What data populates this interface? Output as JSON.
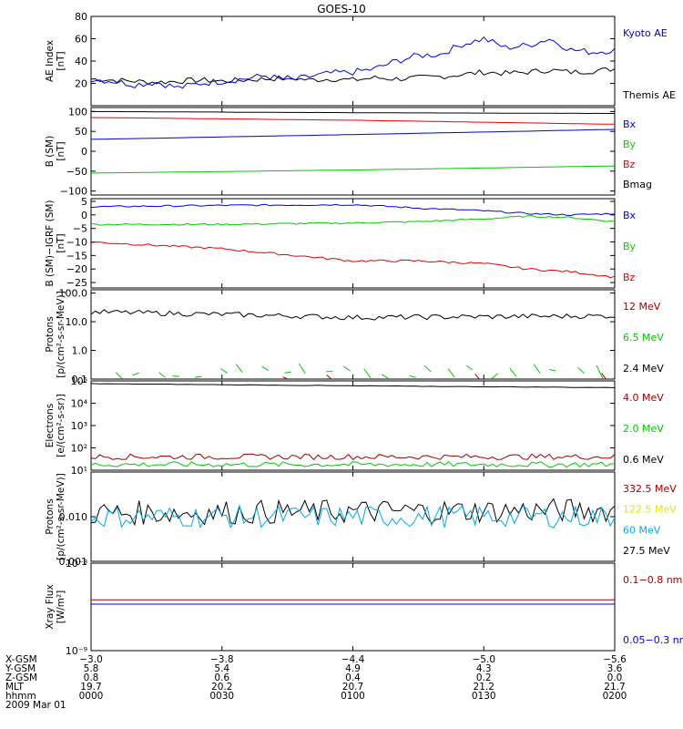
{
  "title": "GOES-10",
  "colors": {
    "black": "#000000",
    "blue": "#0000e6",
    "green": "#00c800",
    "red": "#e60000",
    "darkred": "#a00000",
    "yellow": "#e6e600",
    "cyan": "#00a8e6"
  },
  "panels": [
    {
      "key": "ae",
      "ylabel": [
        "AE Index",
        "[nT]"
      ],
      "scale": "linear",
      "ylim": [
        0,
        80
      ],
      "ticks": [
        {
          "v": 20,
          "t": "20"
        },
        {
          "v": 40,
          "t": "40"
        },
        {
          "v": 60,
          "t": "60"
        },
        {
          "v": 80,
          "t": "80"
        }
      ],
      "legend": [
        {
          "t": "Kyoto AE",
          "c": "blue"
        },
        {
          "t": "Themis AE",
          "c": "black"
        }
      ]
    },
    {
      "key": "bsm",
      "ylabel": [
        "B (SM)",
        "[nT]"
      ],
      "scale": "linear",
      "ylim": [
        -110,
        110
      ],
      "ticks": [
        {
          "v": -100,
          "t": "−100"
        },
        {
          "v": -50,
          "t": "−50"
        },
        {
          "v": 0,
          "t": "0"
        },
        {
          "v": 50,
          "t": "50"
        },
        {
          "v": 100,
          "t": "100"
        }
      ],
      "legend": [
        {
          "t": "Bx",
          "c": "blue"
        },
        {
          "t": "By",
          "c": "green"
        },
        {
          "t": "Bz",
          "c": "red"
        },
        {
          "t": "Bmag",
          "c": "black"
        }
      ]
    },
    {
      "key": "bigrf",
      "ylabel": [
        "B (SM)−IGRF (SM)",
        "[nT]"
      ],
      "scale": "linear",
      "ylim": [
        -27,
        6
      ],
      "ticks": [
        {
          "v": 5,
          "t": "5"
        },
        {
          "v": 0,
          "t": "0"
        },
        {
          "v": -5,
          "t": "−5"
        },
        {
          "v": -10,
          "t": "−10"
        },
        {
          "v": -15,
          "t": "−15"
        },
        {
          "v": -20,
          "t": "−20"
        },
        {
          "v": -25,
          "t": "−25"
        }
      ],
      "legend": [
        {
          "t": "Bx",
          "c": "blue"
        },
        {
          "t": "By",
          "c": "green"
        },
        {
          "t": "Bz",
          "c": "red"
        }
      ]
    },
    {
      "key": "protons1",
      "ylabel": [
        "Protons",
        "[p/(cm²-s-sr-MeV)]"
      ],
      "scale": "log",
      "ylim": [
        0.1,
        130
      ],
      "ticks": [
        {
          "v": 100,
          "t": "100.0"
        },
        {
          "v": 10,
          "t": "10.0"
        },
        {
          "v": 1,
          "t": "1.0"
        },
        {
          "v": 0.1,
          "t": "0.1"
        }
      ],
      "legend": [
        {
          "t": "12 MeV",
          "c": "darkred"
        },
        {
          "t": "6.5 MeV",
          "c": "green"
        },
        {
          "t": "2.4 MeV",
          "c": "black"
        }
      ]
    },
    {
      "key": "electrons",
      "ylabel": [
        "Electrons",
        "[e/(cm²-s-sr)]"
      ],
      "scale": "log",
      "ylim": [
        10,
        100000
      ],
      "ticks": [
        {
          "v": 100000,
          "t": "10⁵"
        },
        {
          "v": 10000,
          "t": "10⁴"
        },
        {
          "v": 1000,
          "t": "10³"
        },
        {
          "v": 100,
          "t": "10²"
        },
        {
          "v": 10,
          "t": "10¹"
        }
      ],
      "legend": [
        {
          "t": "4.0 MeV",
          "c": "darkred"
        },
        {
          "t": "2.0 MeV",
          "c": "green"
        },
        {
          "t": "0.6 MeV",
          "c": "black"
        }
      ]
    },
    {
      "key": "protons2",
      "ylabel": [
        "Protons",
        "[p/(cm²-s-sr-MeV)]"
      ],
      "scale": "log",
      "ylim": [
        0.001,
        0.1
      ],
      "ticks": [
        {
          "v": 0.01,
          "t": "0.010"
        },
        {
          "v": 0.001,
          "t": "0.001"
        }
      ],
      "legend": [
        {
          "t": "332.5 MeV",
          "c": "darkred"
        },
        {
          "t": "122.5 MeV",
          "c": "yellow"
        },
        {
          "t": "60 MeV",
          "c": "cyan"
        },
        {
          "t": "27.5 MeV",
          "c": "black"
        }
      ]
    },
    {
      "key": "xray",
      "ylabel": [
        "Xray Flux",
        "[W/m²]"
      ],
      "scale": "log",
      "ylim": [
        1e-09,
        1e-08
      ],
      "ticks": [
        {
          "v": 1e-08,
          "t": "10⁻⁸"
        },
        {
          "v": 1e-09,
          "t": "10⁻⁹"
        }
      ],
      "legend": [
        {
          "t": "0.1−0.8 nm",
          "c": "darkred"
        },
        {
          "t": "0.05−0.3 nm",
          "c": "blue"
        }
      ]
    }
  ],
  "xaxis": {
    "rows": [
      {
        "label": "X-GSM",
        "values": [
          "−3.0",
          "−3.8",
          "−4.4",
          "−5.0",
          "−5.6"
        ]
      },
      {
        "label": "Y-GSM",
        "values": [
          "5.8",
          "5.4",
          "4.9",
          "4.3",
          "3.6"
        ]
      },
      {
        "label": "Z-GSM",
        "values": [
          "0.8",
          "0.6",
          "0.4",
          "0.2",
          "0.0"
        ]
      },
      {
        "label": "MLT",
        "values": [
          "19.7",
          "20.2",
          "20.7",
          "21.2",
          "21.7"
        ]
      },
      {
        "label": "hhmm",
        "values": [
          "0000",
          "0030",
          "0100",
          "0130",
          "0200"
        ]
      }
    ],
    "date": "2009 Mar 01"
  },
  "chart_data": {
    "type": "line",
    "x_minutes_of_day": [
      0,
      120
    ],
    "series_samples": {
      "kyoto_ae": [
        [
          0,
          24
        ],
        [
          5,
          22
        ],
        [
          10,
          19
        ],
        [
          15,
          21
        ],
        [
          20,
          16
        ],
        [
          25,
          20
        ],
        [
          30,
          22
        ],
        [
          35,
          24
        ],
        [
          40,
          27
        ],
        [
          45,
          22
        ],
        [
          50,
          26
        ],
        [
          55,
          29
        ],
        [
          60,
          30
        ],
        [
          65,
          33
        ],
        [
          70,
          40
        ],
        [
          75,
          45
        ],
        [
          80,
          46
        ],
        [
          85,
          55
        ],
        [
          90,
          60
        ],
        [
          95,
          52
        ],
        [
          100,
          54
        ],
        [
          105,
          60
        ],
        [
          110,
          50
        ],
        [
          115,
          48
        ],
        [
          120,
          50
        ]
      ],
      "themis_ae": [
        [
          0,
          24
        ],
        [
          5,
          23
        ],
        [
          10,
          22
        ],
        [
          15,
          21
        ],
        [
          20,
          22
        ],
        [
          25,
          23
        ],
        [
          30,
          22
        ],
        [
          35,
          23
        ],
        [
          40,
          24
        ],
        [
          45,
          25
        ],
        [
          50,
          23
        ],
        [
          55,
          24
        ],
        [
          60,
          23
        ],
        [
          65,
          25
        ],
        [
          70,
          24
        ],
        [
          75,
          25
        ],
        [
          80,
          26
        ],
        [
          85,
          28
        ],
        [
          90,
          30
        ],
        [
          95,
          29
        ],
        [
          100,
          30
        ],
        [
          105,
          32
        ],
        [
          110,
          30
        ],
        [
          115,
          31
        ],
        [
          120,
          33
        ]
      ],
      "b_bx": [
        [
          0,
          30
        ],
        [
          60,
          42
        ],
        [
          120,
          55
        ]
      ],
      "b_by": [
        [
          0,
          -55
        ],
        [
          60,
          -47
        ],
        [
          120,
          -37
        ]
      ],
      "b_bz": [
        [
          0,
          85
        ],
        [
          60,
          78
        ],
        [
          120,
          68
        ]
      ],
      "b_bmag": [
        [
          0,
          100
        ],
        [
          60,
          97
        ],
        [
          120,
          95
        ]
      ],
      "igrf_bx": [
        [
          0,
          3
        ],
        [
          30,
          3.5
        ],
        [
          60,
          3.8
        ],
        [
          75,
          2.5
        ],
        [
          90,
          1.5
        ],
        [
          100,
          0.5
        ],
        [
          110,
          0
        ],
        [
          120,
          0.5
        ]
      ],
      "igrf_by": [
        [
          0,
          -3.5
        ],
        [
          30,
          -3.5
        ],
        [
          60,
          -3
        ],
        [
          75,
          -2.5
        ],
        [
          90,
          -1.5
        ],
        [
          100,
          -0.5
        ],
        [
          110,
          -1
        ],
        [
          120,
          -2.5
        ]
      ],
      "igrf_bz": [
        [
          0,
          -10
        ],
        [
          30,
          -12.5
        ],
        [
          60,
          -17
        ],
        [
          75,
          -17
        ],
        [
          90,
          -18
        ],
        [
          100,
          -20
        ],
        [
          110,
          -21
        ],
        [
          120,
          -23
        ]
      ],
      "p24": [
        [
          0,
          22
        ],
        [
          30,
          18
        ],
        [
          60,
          14
        ],
        [
          90,
          15
        ],
        [
          120,
          16
        ]
      ],
      "e06": [
        [
          0,
          75000
        ],
        [
          60,
          60000
        ],
        [
          120,
          50000
        ]
      ],
      "e40": [
        [
          0,
          40
        ],
        [
          120,
          40
        ]
      ],
      "e20": [
        [
          0,
          18
        ],
        [
          120,
          18
        ]
      ],
      "p275": [
        [
          0,
          0.012
        ],
        [
          120,
          0.014
        ]
      ],
      "p60": [
        [
          0,
          0.01
        ],
        [
          120,
          0.01
        ]
      ],
      "xr_long": [
        [
          0,
          3.8e-09
        ],
        [
          120,
          3.8e-09
        ]
      ],
      "xr_short": [
        [
          0,
          3.4e-09
        ],
        [
          120,
          3.4e-09
        ]
      ]
    }
  }
}
